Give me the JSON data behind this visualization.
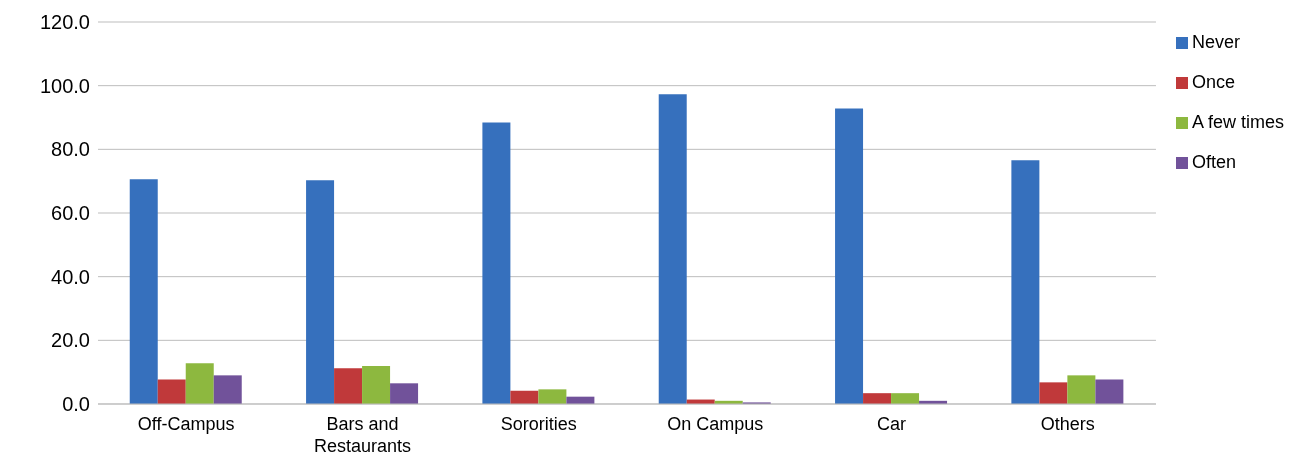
{
  "chart_data": {
    "type": "bar",
    "categories": [
      "Off-Campus",
      "Bars and Restaurants",
      "Sororities",
      "On Campus",
      "Car",
      "Others"
    ],
    "series": [
      {
        "name": "Never",
        "color": "#3670bd",
        "values": [
          70.6,
          70.3,
          88.4,
          97.3,
          92.8,
          76.6
        ]
      },
      {
        "name": "Once",
        "color": "#c0393a",
        "values": [
          7.7,
          11.2,
          4.2,
          1.4,
          3.4,
          6.8
        ]
      },
      {
        "name": "A few times",
        "color": "#8db83f",
        "values": [
          12.8,
          11.9,
          4.6,
          1.0,
          3.4,
          9.0
        ]
      },
      {
        "name": "Often",
        "color": "#71529a",
        "values": [
          9.0,
          6.5,
          2.3,
          0.5,
          1.0,
          7.7
        ]
      }
    ],
    "ylim": [
      0,
      120
    ],
    "yticks": [
      {
        "value": 0,
        "label": "0.0"
      },
      {
        "value": 20,
        "label": "20.0"
      },
      {
        "value": 40,
        "label": "40.0"
      },
      {
        "value": 60,
        "label": "60.0"
      },
      {
        "value": 80,
        "label": "80.0"
      },
      {
        "value": 100,
        "label": "100.0"
      },
      {
        "value": 120,
        "label": "120.0"
      }
    ],
    "grid": "y",
    "legend": "right"
  }
}
